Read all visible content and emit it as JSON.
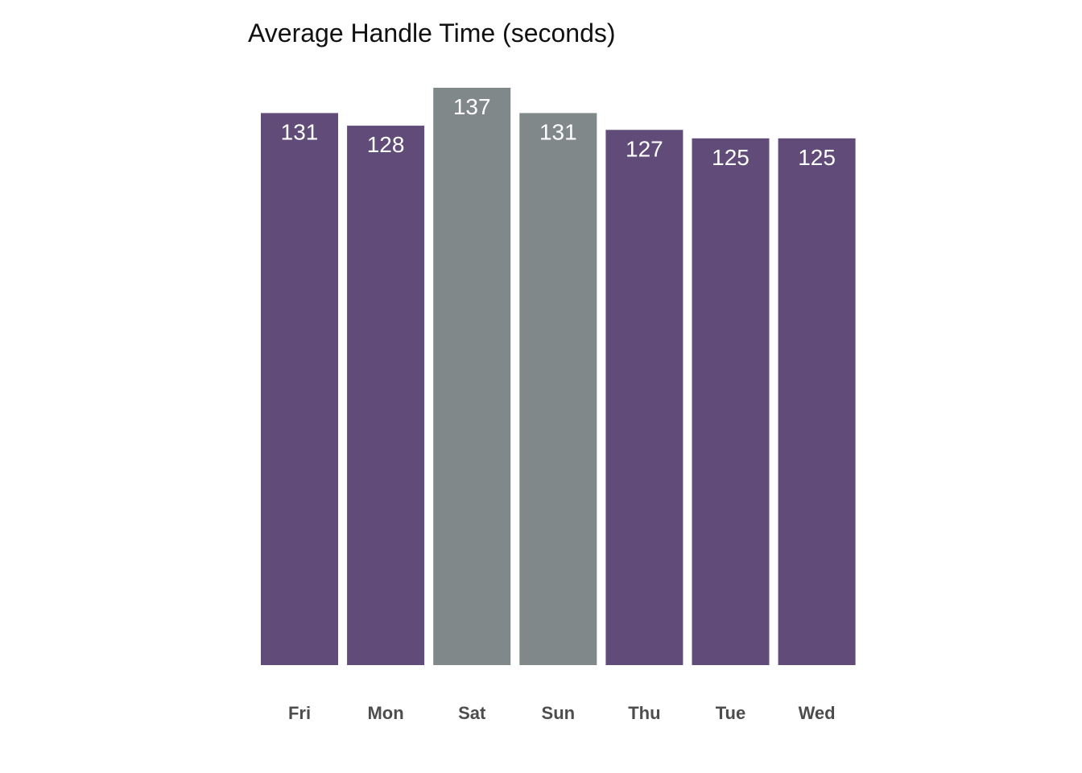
{
  "chart_data": {
    "type": "bar",
    "title": "Average Handle Time (seconds)",
    "xlabel": "",
    "ylabel": "",
    "categories": [
      "Fri",
      "Mon",
      "Sat",
      "Sun",
      "Thu",
      "Tue",
      "Wed"
    ],
    "values": [
      131,
      128,
      137,
      131,
      127,
      125,
      125
    ],
    "highlight": [
      false,
      false,
      true,
      true,
      false,
      false,
      false
    ],
    "colors": {
      "default": "#614b79",
      "highlight": "#808889"
    },
    "ylim": [
      0,
      137
    ],
    "grid": false,
    "legend": "none",
    "data_labels": true
  }
}
